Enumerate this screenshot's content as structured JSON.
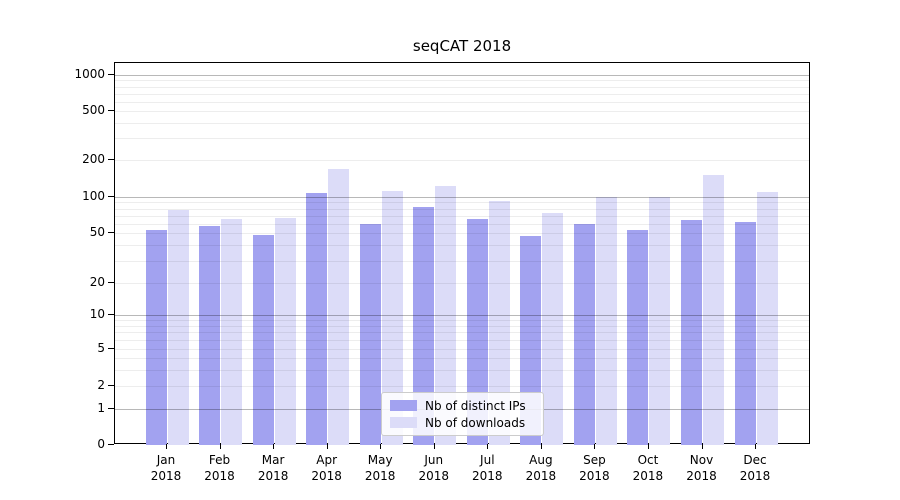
{
  "title": "seqCAT 2018",
  "chart_data": {
    "type": "bar",
    "title": "seqCAT 2018",
    "categories": [
      "Jan",
      "Feb",
      "Mar",
      "Apr",
      "May",
      "Jun",
      "Jul",
      "Aug",
      "Sep",
      "Oct",
      "Nov",
      "Dec"
    ],
    "x_sublabel": "2018",
    "series": [
      {
        "name": "Nb of distinct IPs",
        "color": "#a2a2f0",
        "values": [
          53,
          57,
          48,
          107,
          59,
          82,
          65,
          47,
          59,
          53,
          64,
          62
        ]
      },
      {
        "name": "Nb of downloads",
        "color": "#dcdcf8",
        "values": [
          78,
          65,
          67,
          168,
          111,
          124,
          93,
          74,
          100,
          100,
          150,
          110
        ]
      }
    ],
    "y_tick_labels": [
      "0",
      "1",
      "2",
      "5",
      "10",
      "20",
      "50",
      "100",
      "200",
      "500",
      "1000"
    ],
    "y_tick_values": [
      0,
      1,
      2,
      5,
      10,
      20,
      50,
      100,
      200,
      500,
      1000
    ],
    "y_scale": "symlog",
    "ylim": [
      0,
      1000
    ],
    "xlabel": "",
    "ylabel": "",
    "grid": "horizontal major+minor",
    "legend_position": "lower center",
    "legend": [
      {
        "label": "Nb of distinct IPs",
        "color": "#a2a2f0"
      },
      {
        "label": "Nb of downloads",
        "color": "#dcdcf8"
      }
    ]
  },
  "colors": {
    "bar_distinct_ips": "#a2a2f0",
    "bar_downloads": "#dcdcf8",
    "major_grid": "rgba(0,0,0,0.28)",
    "minor_grid": "rgba(0,0,0,0.07)",
    "axis": "#000000",
    "background": "#ffffff",
    "legend_border": "#cccccc"
  }
}
